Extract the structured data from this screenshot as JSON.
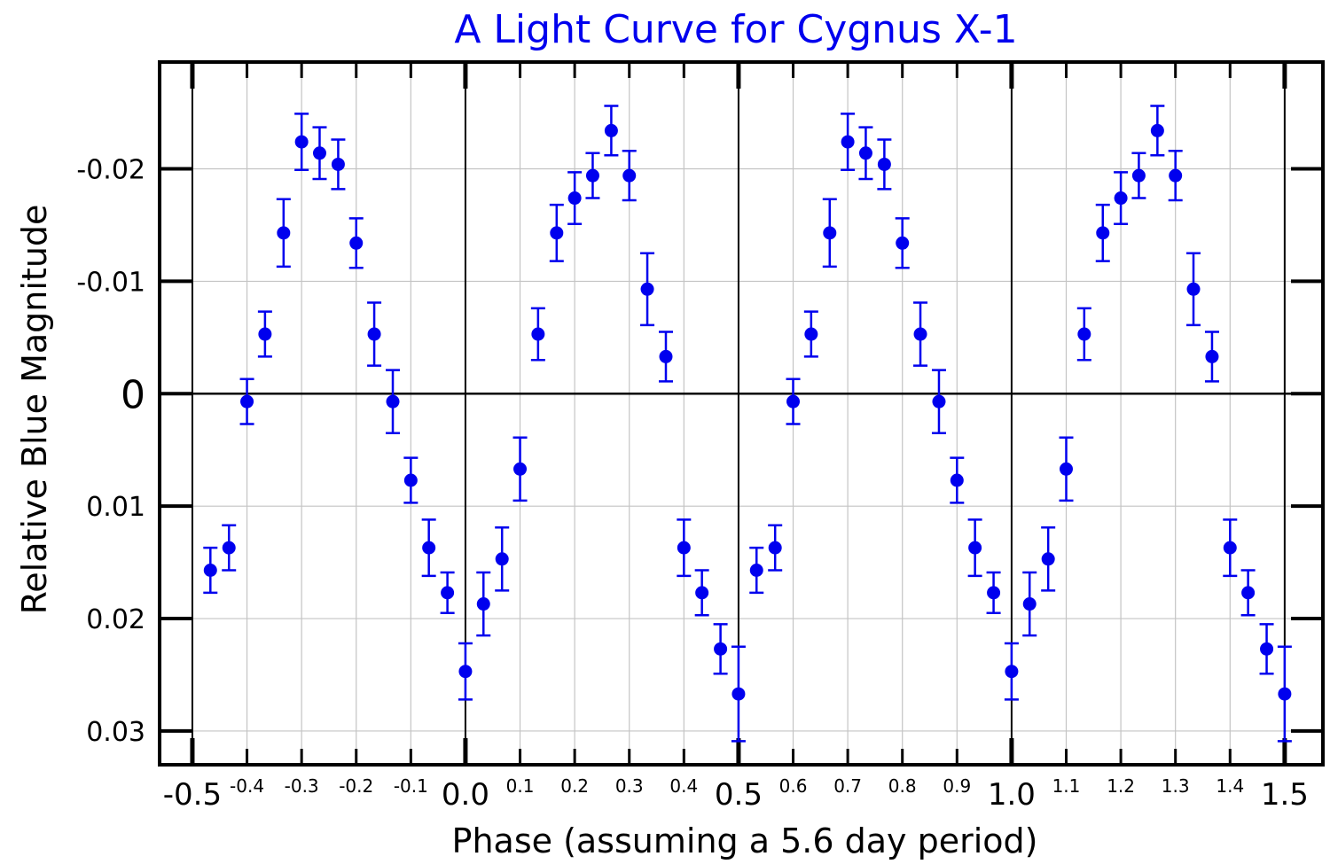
{
  "chart_data": {
    "type": "scatter",
    "title": "A Light Curve for Cygnus X-1",
    "xlabel": "Phase (assuming a 5.6 day period)",
    "ylabel": "Relative Blue Magnitude",
    "xlim": [
      -0.56,
      1.57
    ],
    "ylim": [
      0.033,
      -0.0295
    ],
    "y_inverted": true,
    "grid": true,
    "xticks_major": [
      {
        "value": -0.5,
        "label": "-0.5"
      },
      {
        "value": 0.0,
        "label": "0.0"
      },
      {
        "value": 0.5,
        "label": "0.5"
      },
      {
        "value": 1.0,
        "label": "1.0"
      },
      {
        "value": 1.5,
        "label": "1.5"
      }
    ],
    "xticks_minor": [
      {
        "value": -0.4,
        "label": "-0.4"
      },
      {
        "value": -0.3,
        "label": "-0.3"
      },
      {
        "value": -0.2,
        "label": "-0.2"
      },
      {
        "value": -0.1,
        "label": "-0.1"
      },
      {
        "value": 0.1,
        "label": "0.1"
      },
      {
        "value": 0.2,
        "label": "0.2"
      },
      {
        "value": 0.3,
        "label": "0.3"
      },
      {
        "value": 0.4,
        "label": "0.4"
      },
      {
        "value": 0.6,
        "label": "0.6"
      },
      {
        "value": 0.7,
        "label": "0.7"
      },
      {
        "value": 0.8,
        "label": "0.8"
      },
      {
        "value": 0.9,
        "label": "0.9"
      },
      {
        "value": 1.1,
        "label": "1.1"
      },
      {
        "value": 1.2,
        "label": "1.2"
      },
      {
        "value": 1.3,
        "label": "1.3"
      },
      {
        "value": 1.4,
        "label": "1.4"
      }
    ],
    "yticks": [
      {
        "value": -0.02,
        "label": "-0.02"
      },
      {
        "value": -0.01,
        "label": "-0.01"
      },
      {
        "value": 0,
        "label": "0"
      },
      {
        "value": 0.01,
        "label": "0.01"
      },
      {
        "value": 0.02,
        "label": "0.02"
      },
      {
        "value": 0.03,
        "label": "0.03"
      }
    ],
    "vertical_lines": [
      -0.5,
      0.0,
      0.5,
      1.0,
      1.5
    ],
    "horizontal_lines": [
      0
    ],
    "marker_color": "#0000ee",
    "series": [
      {
        "x": [
          -0.467,
          -0.433,
          -0.4,
          -0.367,
          -0.333,
          -0.3,
          -0.267,
          -0.233,
          -0.2,
          -0.167,
          -0.133,
          -0.1,
          -0.067,
          -0.033,
          0.0,
          0.033,
          0.067,
          0.1,
          0.133,
          0.167,
          0.2,
          0.233,
          0.267,
          0.3,
          0.333,
          0.367,
          0.4,
          0.433,
          0.467,
          0.5,
          0.533,
          0.567,
          0.6,
          0.633,
          0.667,
          0.7,
          0.733,
          0.767,
          0.8,
          0.833,
          0.867,
          0.9,
          0.933,
          0.967,
          1.0,
          1.033,
          1.067,
          1.1,
          1.133,
          1.167,
          1.2,
          1.233,
          1.267,
          1.3,
          1.333,
          1.367,
          1.4,
          1.433,
          1.467,
          1.5
        ],
        "y": [
          0.0157,
          0.0137,
          0.0007,
          -0.0053,
          -0.0143,
          -0.0224,
          -0.0214,
          -0.0204,
          -0.0134,
          -0.0053,
          0.0007,
          0.0077,
          0.0137,
          0.0177,
          0.0247,
          0.0187,
          0.0147,
          0.0067,
          -0.0053,
          -0.0143,
          -0.0174,
          -0.0194,
          -0.0234,
          -0.0194,
          -0.0093,
          -0.0033,
          0.0137,
          0.0177,
          0.0227,
          0.0267,
          0.0157,
          0.0137,
          0.0007,
          -0.0053,
          -0.0143,
          -0.0224,
          -0.0214,
          -0.0204,
          -0.0134,
          -0.0053,
          0.0007,
          0.0077,
          0.0137,
          0.0177,
          0.0247,
          0.0187,
          0.0147,
          0.0067,
          -0.0053,
          -0.0143,
          -0.0174,
          -0.0194,
          -0.0234,
          -0.0194,
          -0.0093,
          -0.0033,
          0.0137,
          0.0177,
          0.0227,
          0.0267
        ],
        "err": [
          0.002,
          0.002,
          0.002,
          0.002,
          0.003,
          0.0025,
          0.0023,
          0.0022,
          0.0022,
          0.0028,
          0.0028,
          0.002,
          0.0025,
          0.0018,
          0.0025,
          0.0028,
          0.0028,
          0.0028,
          0.0023,
          0.0025,
          0.0023,
          0.002,
          0.0022,
          0.0022,
          0.0032,
          0.0022,
          0.0025,
          0.002,
          0.0022,
          0.0042,
          0.002,
          0.002,
          0.002,
          0.002,
          0.003,
          0.0025,
          0.0023,
          0.0022,
          0.0022,
          0.0028,
          0.0028,
          0.002,
          0.0025,
          0.0018,
          0.0025,
          0.0028,
          0.0028,
          0.0028,
          0.0023,
          0.0025,
          0.0023,
          0.002,
          0.0022,
          0.0022,
          0.0032,
          0.0022,
          0.0025,
          0.002,
          0.0022,
          0.0042
        ]
      }
    ]
  }
}
